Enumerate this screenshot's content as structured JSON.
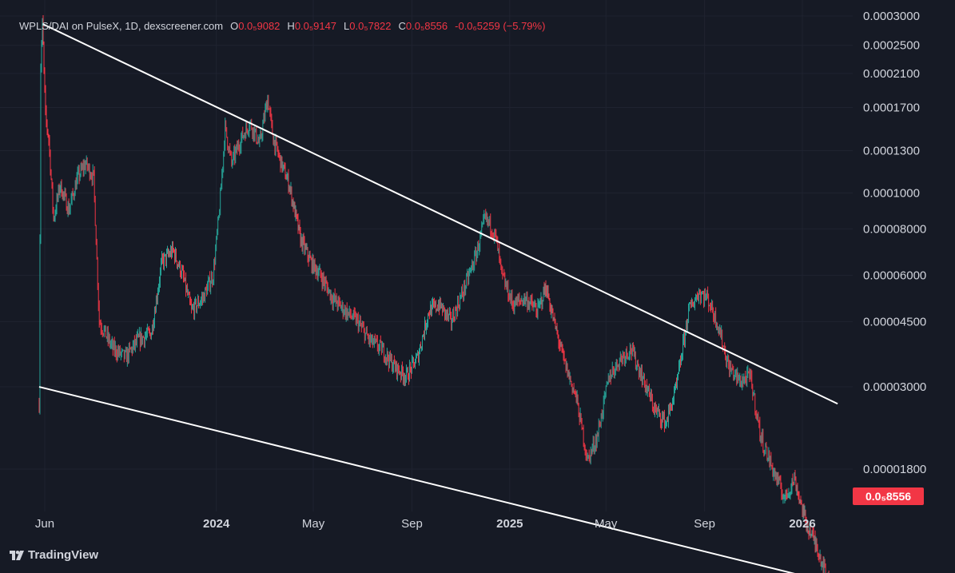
{
  "legend": {
    "symbol": "WPLS/DAI on PulseX, 1D, dexscreener.com",
    "o_key": "O",
    "o_val": "0.0₅9082",
    "h_key": "H",
    "h_val": "0.0₅9147",
    "l_key": "L",
    "l_val": "0.0₅7822",
    "c_key": "C",
    "c_val": "0.0₅8556",
    "change": "-0.0₆5259 (−5.79%)"
  },
  "price_label": "0.0₅8556",
  "brand": "TradingView",
  "colors": {
    "background": "#161a25",
    "up": "#26a69a",
    "down": "#f23645",
    "trendline": "#ffffff",
    "grid": "#1f2330",
    "text": "#d1d4dc"
  },
  "chart_data": {
    "type": "candlestick",
    "title": "WPLS/DAI on PulseX, 1D, dexscreener.com",
    "y_scale": "log",
    "y_ticks": [
      {
        "value": 0.0003,
        "label": "0.0003000"
      },
      {
        "value": 0.00025,
        "label": "0.0002500"
      },
      {
        "value": 0.00021,
        "label": "0.0002100"
      },
      {
        "value": 0.00017,
        "label": "0.0001700"
      },
      {
        "value": 0.00013,
        "label": "0.0001300"
      },
      {
        "value": 0.0001,
        "label": "0.0001000"
      },
      {
        "value": 8e-05,
        "label": "0.00008000"
      },
      {
        "value": 6e-05,
        "label": "0.00006000"
      },
      {
        "value": 4.5e-05,
        "label": "0.00004500"
      },
      {
        "value": 3e-05,
        "label": "0.00003000"
      },
      {
        "value": 1.8e-05,
        "label": "0.00001800"
      }
    ],
    "x_ticks": [
      {
        "date": "2023-06-01",
        "label": "Jun"
      },
      {
        "date": "2024-01-01",
        "label": "2024"
      },
      {
        "date": "2024-05-01",
        "label": "May"
      },
      {
        "date": "2024-09-01",
        "label": "Sep"
      },
      {
        "date": "2025-01-01",
        "label": "2025"
      },
      {
        "date": "2025-05-01",
        "label": "May"
      },
      {
        "date": "2025-09-01",
        "label": "Sep"
      },
      {
        "date": "2026-01-01",
        "label": "2026"
      }
    ],
    "x_range": [
      "2023-05-20",
      "2026-02-20"
    ],
    "close_path": [
      [
        "2023-05-25",
        2.7e-05
      ],
      [
        "2023-05-27",
        0.00022
      ],
      [
        "2023-05-29",
        0.000285
      ],
      [
        "2023-06-02",
        0.00016
      ],
      [
        "2023-06-06",
        0.00014
      ],
      [
        "2023-06-12",
        8.5e-05
      ],
      [
        "2023-06-20",
        0.000105
      ],
      [
        "2023-07-01",
        9e-05
      ],
      [
        "2023-07-12",
        0.00011
      ],
      [
        "2023-07-22",
        0.00012
      ],
      [
        "2023-08-01",
        0.00011
      ],
      [
        "2023-08-08",
        4.5e-05
      ],
      [
        "2023-08-25",
        3.8e-05
      ],
      [
        "2023-09-10",
        3.6e-05
      ],
      [
        "2023-09-25",
        4e-05
      ],
      [
        "2023-10-12",
        4.2e-05
      ],
      [
        "2023-10-25",
        6.5e-05
      ],
      [
        "2023-11-08",
        7e-05
      ],
      [
        "2023-11-20",
        6e-05
      ],
      [
        "2023-12-01",
        4.8e-05
      ],
      [
        "2023-12-15",
        5.2e-05
      ],
      [
        "2023-12-28",
        6e-05
      ],
      [
        "2024-01-05",
        9e-05
      ],
      [
        "2024-01-12",
        0.00015
      ],
      [
        "2024-01-20",
        0.00012
      ],
      [
        "2024-02-01",
        0.00014
      ],
      [
        "2024-02-12",
        0.000155
      ],
      [
        "2024-02-24",
        0.000135
      ],
      [
        "2024-03-05",
        0.00018
      ],
      [
        "2024-03-12",
        0.00014
      ],
      [
        "2024-03-22",
        0.00012
      ],
      [
        "2024-04-01",
        0.000105
      ],
      [
        "2024-04-15",
        7.5e-05
      ],
      [
        "2024-04-28",
        6.5e-05
      ],
      [
        "2024-05-10",
        6e-05
      ],
      [
        "2024-05-25",
        5.2e-05
      ],
      [
        "2024-06-10",
        4.8e-05
      ],
      [
        "2024-06-25",
        4.5e-05
      ],
      [
        "2024-07-10",
        4e-05
      ],
      [
        "2024-07-25",
        3.8e-05
      ],
      [
        "2024-08-10",
        3.4e-05
      ],
      [
        "2024-08-25",
        3.2e-05
      ],
      [
        "2024-09-08",
        3.6e-05
      ],
      [
        "2024-09-22",
        4.8e-05
      ],
      [
        "2024-10-05",
        5e-05
      ],
      [
        "2024-10-20",
        4.5e-05
      ],
      [
        "2024-11-05",
        5.5e-05
      ],
      [
        "2024-11-20",
        6.8e-05
      ],
      [
        "2024-12-01",
        8.5e-05
      ],
      [
        "2024-12-08",
        8.2e-05
      ],
      [
        "2024-12-15",
        7.5e-05
      ],
      [
        "2024-12-22",
        6e-05
      ],
      [
        "2025-01-05",
        5e-05
      ],
      [
        "2025-01-20",
        5.2e-05
      ],
      [
        "2025-02-05",
        4.8e-05
      ],
      [
        "2025-02-15",
        5.6e-05
      ],
      [
        "2025-02-25",
        4.5e-05
      ],
      [
        "2025-03-10",
        3.5e-05
      ],
      [
        "2025-03-25",
        2.8e-05
      ],
      [
        "2025-04-08",
        1.9e-05
      ],
      [
        "2025-04-20",
        2.2e-05
      ],
      [
        "2025-05-05",
        3.2e-05
      ],
      [
        "2025-05-20",
        3.6e-05
      ],
      [
        "2025-06-01",
        3.8e-05
      ],
      [
        "2025-06-15",
        3.2e-05
      ],
      [
        "2025-07-01",
        2.6e-05
      ],
      [
        "2025-07-15",
        2.4e-05
      ],
      [
        "2025-07-28",
        3e-05
      ],
      [
        "2025-08-12",
        4.8e-05
      ],
      [
        "2025-08-25",
        5.4e-05
      ],
      [
        "2025-09-05",
        5.2e-05
      ],
      [
        "2025-09-18",
        4.4e-05
      ],
      [
        "2025-10-01",
        3.4e-05
      ],
      [
        "2025-10-15",
        3.1e-05
      ],
      [
        "2025-10-28",
        3.2e-05
      ],
      [
        "2025-11-10",
        2.2e-05
      ],
      [
        "2025-11-25",
        1.8e-05
      ],
      [
        "2025-12-10",
        1.5e-05
      ],
      [
        "2025-12-22",
        1.7e-05
      ],
      [
        "2026-01-05",
        1.3e-05
      ],
      [
        "2026-01-20",
        1.1e-05
      ],
      [
        "2026-02-05",
        8.6e-06
      ]
    ],
    "trendlines": [
      {
        "name": "upper",
        "from": [
          "2023-05-30",
          0.000285
        ],
        "to": [
          "2026-02-14",
          2.7e-05
        ]
      },
      {
        "name": "lower",
        "from": [
          "2023-05-25",
          3e-05
        ],
        "to": [
          "2026-02-14",
          8.8e-06
        ]
      }
    ],
    "last_price": {
      "value": 8.556e-06,
      "label": "0.0₅8556"
    },
    "grid": true,
    "legend_position": "top-left"
  }
}
